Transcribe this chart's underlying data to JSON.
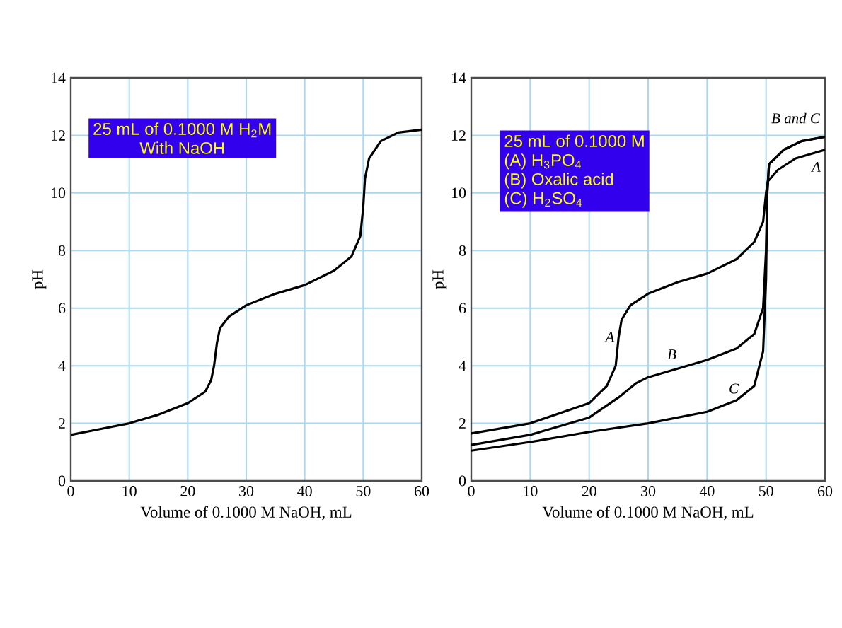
{
  "chart_data": [
    {
      "type": "line",
      "xlabel": "Volume of 0.1000 M NaOH, mL",
      "ylabel": "pH",
      "xlim": [
        0,
        60
      ],
      "ylim": [
        0,
        14
      ],
      "xticks": [
        0,
        10,
        20,
        30,
        40,
        50,
        60
      ],
      "yticks": [
        0,
        2,
        4,
        6,
        8,
        10,
        12,
        14
      ],
      "grid": true,
      "annotations": [
        "25 mL of 0.1000 M H$_{2}$M",
        "With NaOH"
      ],
      "series": [
        {
          "color": "#000000",
          "x": [
            0,
            5,
            10,
            15,
            20,
            23,
            24,
            24.5,
            25,
            25.5,
            27,
            30,
            35,
            40,
            45,
            48,
            49.5,
            50,
            50.3,
            51,
            53,
            56,
            60
          ],
          "values": [
            1.6,
            1.8,
            2.0,
            2.3,
            2.7,
            3.1,
            3.5,
            4.0,
            4.8,
            5.3,
            5.7,
            6.1,
            6.5,
            6.8,
            7.3,
            7.8,
            8.5,
            9.5,
            10.5,
            11.2,
            11.8,
            12.1,
            12.2
          ]
        }
      ]
    },
    {
      "type": "line",
      "xlabel": "Volume of 0.1000 M NaOH, mL",
      "ylabel": "pH",
      "xlim": [
        0,
        60
      ],
      "ylim": [
        0,
        14
      ],
      "xticks": [
        0,
        10,
        20,
        30,
        40,
        50,
        60
      ],
      "yticks": [
        0,
        2,
        4,
        6,
        8,
        10,
        12,
        14
      ],
      "grid": true,
      "annotations": [
        "25 mL of 0.1000 M",
        "(A) H$_{3}$PO$_{4}$",
        "(B) Oxalic acid",
        "(C) H$_{2}$SO$_{4}$",
        "A",
        "B",
        "C",
        "B and C",
        "A"
      ],
      "series": [
        {
          "color": "#000000",
          "x": [
            0,
            10,
            20,
            23,
            24.5,
            25,
            25.5,
            27,
            30,
            35,
            40,
            45,
            48,
            49.5,
            50,
            50.3,
            52,
            55,
            60
          ],
          "values": [
            1.65,
            2.0,
            2.7,
            3.3,
            4.0,
            5.0,
            5.6,
            6.1,
            6.5,
            6.9,
            7.2,
            7.7,
            8.3,
            9.0,
            10.0,
            10.4,
            10.8,
            11.2,
            11.5
          ]
        },
        {
          "color": "#000000",
          "x": [
            0,
            10,
            20,
            25,
            28,
            30,
            35,
            40,
            45,
            48,
            49.5,
            50,
            50.2,
            50.5,
            53,
            56,
            60
          ],
          "values": [
            1.25,
            1.6,
            2.2,
            2.9,
            3.4,
            3.6,
            3.9,
            4.2,
            4.6,
            5.1,
            6.0,
            8.0,
            10.0,
            11.0,
            11.5,
            11.8,
            11.95
          ]
        },
        {
          "color": "#000000",
          "x": [
            0,
            10,
            20,
            30,
            40,
            45,
            48,
            49.5,
            50,
            50.2,
            50.5,
            53,
            56,
            60
          ],
          "values": [
            1.05,
            1.35,
            1.7,
            2.0,
            2.4,
            2.8,
            3.3,
            4.5,
            7.0,
            10.0,
            11.0,
            11.5,
            11.8,
            11.95
          ]
        }
      ]
    }
  ]
}
